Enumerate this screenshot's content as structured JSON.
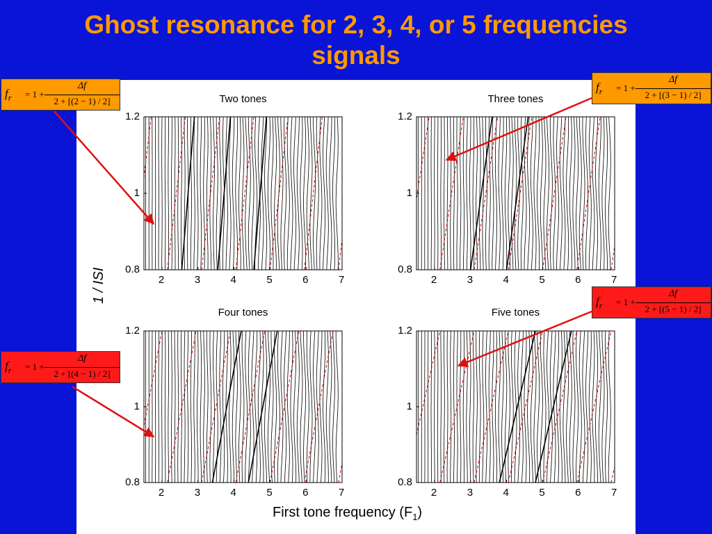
{
  "slide": {
    "title_line1": "Ghost resonance for 2, 3, 4, or 5 frequencies",
    "title_line2": "signals"
  },
  "colors": {
    "background": "#0a14d6",
    "title": "#ff9900",
    "formula_orange": "#ff9900",
    "formula_red": "#ff1a1a",
    "arrow": "#e01010",
    "ghost_line": "#cc0000",
    "trace": "#000000"
  },
  "axes": {
    "y_label": "1 / ISI",
    "x_label": "First tone  frequency (F",
    "x_label_sub": "1",
    "x_label_end": ")"
  },
  "chart_data": [
    {
      "type": "line",
      "title": "Two tones",
      "n_tones": 2,
      "xlim": [
        1.5,
        7
      ],
      "ylim": [
        0.8,
        1.2
      ],
      "xticks": [
        "2",
        "3",
        "4",
        "5",
        "6",
        "7"
      ],
      "yticks": [
        "0.8",
        "1",
        "1.2"
      ],
      "series": [
        {
          "values": [
            [
              2.55,
              0.8
            ],
            [
              2.9,
              1.2
            ]
          ]
        },
        {
          "values": [
            [
              3.55,
              0.8
            ],
            [
              3.9,
              1.2
            ]
          ]
        },
        {
          "values": [
            [
              4.55,
              0.8
            ],
            [
              4.9,
              1.2
            ]
          ]
        }
      ]
    },
    {
      "type": "line",
      "title": "Three tones",
      "n_tones": 3,
      "xlim": [
        1.5,
        7
      ],
      "ylim": [
        0.8,
        1.2
      ],
      "xticks": [
        "2",
        "3",
        "4",
        "5",
        "6",
        "7"
      ],
      "yticks": [
        "0.8",
        "1",
        "1.2"
      ],
      "series": [
        {
          "values": [
            [
              3.0,
              0.8
            ],
            [
              3.6,
              1.2
            ]
          ]
        },
        {
          "values": [
            [
              4.0,
              0.8
            ],
            [
              4.6,
              1.2
            ]
          ]
        }
      ]
    },
    {
      "type": "line",
      "title": "Four tones",
      "n_tones": 4,
      "xlim": [
        1.5,
        7
      ],
      "ylim": [
        0.8,
        1.2
      ],
      "xticks": [
        "2",
        "3",
        "4",
        "5",
        "6",
        "7"
      ],
      "yticks": [
        "0.8",
        "1",
        "1.2"
      ],
      "series": [
        {
          "values": [
            [
              3.4,
              0.8
            ],
            [
              4.2,
              1.2
            ]
          ]
        },
        {
          "values": [
            [
              4.4,
              0.8
            ],
            [
              5.2,
              1.2
            ]
          ]
        }
      ]
    },
    {
      "type": "line",
      "title": "Five tones",
      "n_tones": 5,
      "xlim": [
        1.5,
        7
      ],
      "ylim": [
        0.8,
        1.2
      ],
      "xticks": [
        "2",
        "3",
        "4",
        "5",
        "6",
        "7"
      ],
      "yticks": [
        "0.8",
        "1",
        "1.2"
      ],
      "series": [
        {
          "values": [
            [
              3.8,
              0.8
            ],
            [
              4.8,
              1.2
            ]
          ]
        },
        {
          "values": [
            [
              4.8,
              0.8
            ],
            [
              5.8,
              1.2
            ]
          ]
        }
      ]
    }
  ],
  "formulas": [
    {
      "lhs": "f",
      "lhs_sub": "r",
      "eq": "= 1 +",
      "num": "Δf",
      "den": "2 + [(2 − 1) / 2]",
      "color": "#ff9900"
    },
    {
      "lhs": "f",
      "lhs_sub": "r",
      "eq": "= 1 +",
      "num": "Δf",
      "den": "2 + [(3 − 1) / 2]",
      "color": "#ff9900"
    },
    {
      "lhs": "f",
      "lhs_sub": "r",
      "eq": "= 1 +",
      "num": "Δf",
      "den": "2 + [(4 − 1) / 2]",
      "color": "#ff1a1a"
    },
    {
      "lhs": "f",
      "lhs_sub": "r",
      "eq": "= 1 +",
      "num": "Δf",
      "den": "2 + [(5 − 1) / 2]",
      "color": "#ff1a1a"
    }
  ]
}
